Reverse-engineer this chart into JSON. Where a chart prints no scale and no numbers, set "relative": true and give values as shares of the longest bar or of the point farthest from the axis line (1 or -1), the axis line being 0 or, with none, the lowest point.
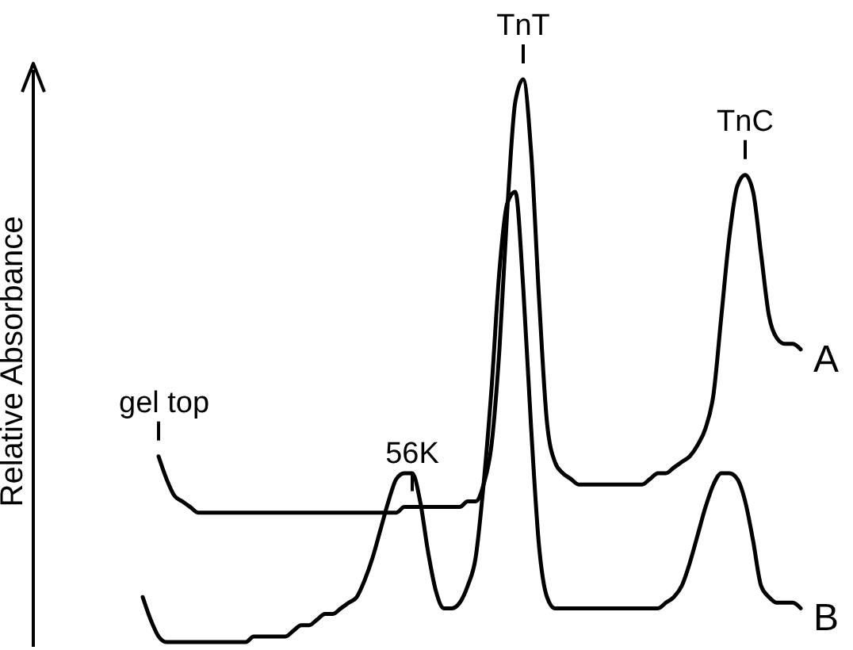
{
  "chart_data": {
    "type": "line",
    "relative": true,
    "ylabel": "Relative Absorbance",
    "marker": "none",
    "line_style": "solid",
    "annotations": [
      "gel top",
      "56K",
      "TnT",
      "TnC"
    ],
    "categories": [
      null,
      null,
      null,
      null,
      null,
      null,
      null,
      null,
      null,
      null,
      null,
      null,
      null,
      null,
      null,
      null,
      null,
      null,
      null,
      null,
      null,
      null,
      null,
      null,
      null,
      null,
      null,
      null,
      null,
      null,
      null,
      null,
      null,
      null,
      null,
      null,
      null,
      null,
      null,
      null,
      null,
      null,
      null,
      null,
      null,
      null,
      null,
      null,
      null,
      null,
      null,
      null,
      null,
      null,
      null,
      null,
      null,
      null,
      null,
      null,
      null,
      null,
      null,
      null,
      null,
      null,
      null,
      null,
      null,
      null,
      null,
      null,
      null,
      null,
      null,
      null,
      null,
      null,
      null,
      null,
      null,
      null,
      null,
      null
    ],
    "series": [
      {
        "name": "A",
        "color": "#000000",
        "values": [
          null,
          null,
          0.33,
          0.29,
          0.26,
          0.25,
          0.24,
          0.23,
          0.23,
          0.23,
          0.23,
          0.23,
          0.23,
          0.23,
          0.23,
          0.23,
          0.23,
          0.23,
          0.23,
          0.23,
          0.23,
          0.23,
          0.23,
          0.23,
          0.23,
          0.23,
          0.23,
          0.23,
          0.23,
          0.23,
          0.23,
          0.23,
          0.23,
          0.24,
          0.24,
          0.24,
          0.24,
          0.24,
          0.24,
          0.24,
          0.24,
          0.25,
          0.25,
          0.28,
          0.35,
          0.52,
          0.77,
          0.96,
          1,
          0.87,
          0.61,
          0.39,
          0.32,
          0.3,
          0.29,
          0.28,
          0.28,
          0.28,
          0.28,
          0.28,
          0.28,
          0.28,
          0.28,
          0.28,
          0.29,
          0.3,
          0.3,
          0.31,
          0.32,
          0.33,
          0.35,
          0.38,
          0.44,
          0.58,
          0.72,
          0.81,
          0.83,
          0.8,
          0.69,
          0.58,
          0.54,
          0.53,
          0.53,
          0.52
        ]
      },
      {
        "name": "B",
        "color": "#000000",
        "values": [
          0.08,
          0.04,
          0.01,
          0,
          0,
          0,
          0,
          0,
          0,
          0,
          0,
          0,
          0,
          0,
          0.01,
          0.01,
          0.01,
          0.01,
          0.01,
          0.02,
          0.03,
          0.03,
          0.04,
          0.05,
          0.05,
          0.06,
          0.07,
          0.08,
          0.11,
          0.15,
          0.2,
          0.25,
          0.29,
          0.3,
          0.3,
          0.25,
          0.16,
          0.09,
          0.06,
          0.06,
          0.07,
          0.1,
          0.15,
          0.28,
          0.45,
          0.66,
          0.78,
          0.8,
          0.63,
          0.38,
          0.17,
          0.08,
          0.06,
          0.06,
          0.06,
          0.06,
          0.06,
          0.06,
          0.06,
          0.06,
          0.06,
          0.06,
          0.06,
          0.06,
          0.06,
          0.06,
          0.07,
          0.08,
          0.1,
          0.14,
          0.19,
          0.24,
          0.28,
          0.3,
          0.3,
          0.29,
          0.25,
          0.18,
          0.1,
          0.08,
          0.07,
          0.07,
          0.07,
          0.06
        ]
      }
    ]
  }
}
